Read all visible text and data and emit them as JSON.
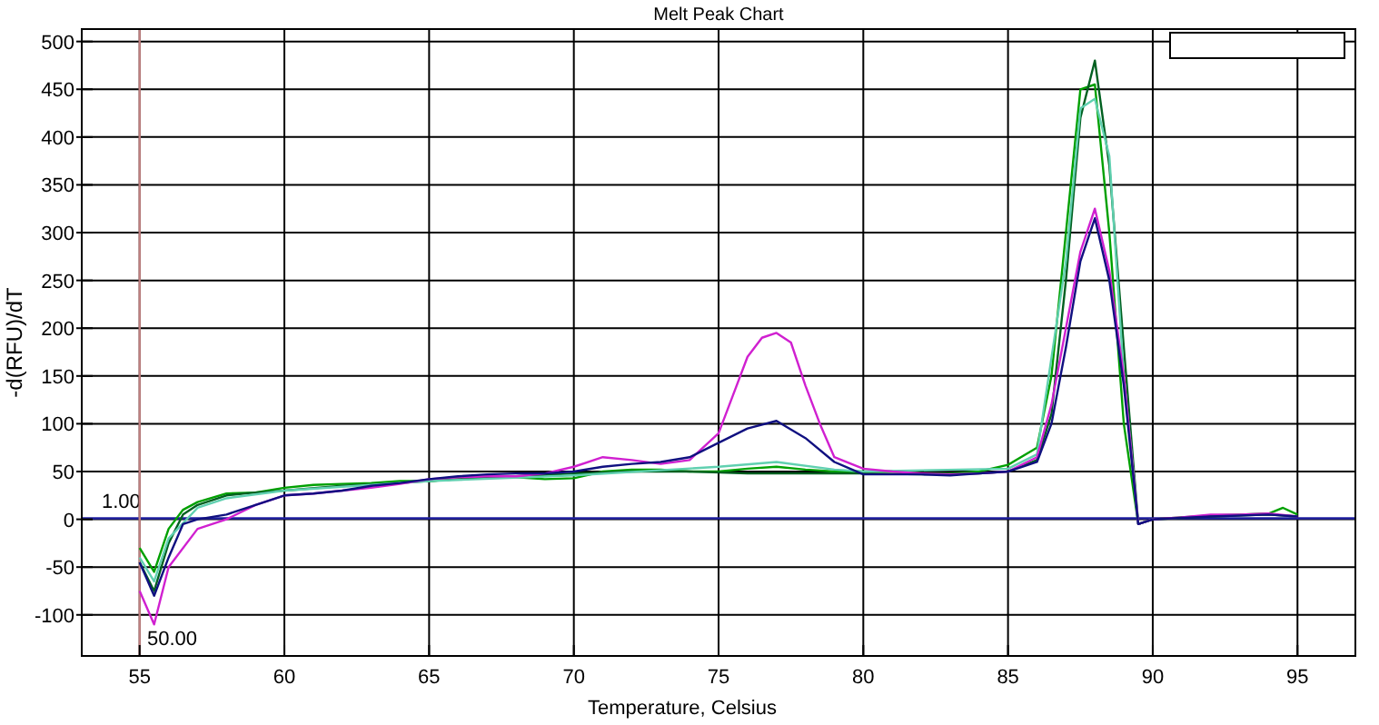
{
  "chart_data": {
    "type": "line",
    "title": "Melt Peak Chart",
    "xlabel": "Temperature, Celsius",
    "ylabel": "-d(RFU)/dT",
    "xlim": [
      53,
      97
    ],
    "xticks": [
      55,
      60,
      65,
      70,
      75,
      80,
      85,
      90,
      95
    ],
    "ylim": [
      -143,
      513
    ],
    "yticks": [
      -100,
      -50,
      0,
      50,
      100,
      150,
      200,
      250,
      300,
      350,
      400,
      450,
      500
    ],
    "grid": true,
    "marker": "none",
    "line_style": "solid",
    "ref_lines": [
      {
        "axis": "y",
        "value": 1,
        "label": "1.00",
        "color": "#2020a0"
      },
      {
        "axis": "x",
        "value": 55,
        "color": "#c08080"
      }
    ],
    "annotations": [
      "50.00"
    ],
    "series": [
      {
        "color": "#00a000",
        "x": [
          55,
          55.5,
          56,
          56.5,
          57,
          58,
          59,
          60,
          61,
          62,
          63,
          64,
          65,
          66,
          67,
          68,
          69,
          70,
          71,
          72,
          73,
          74,
          75,
          76,
          77,
          78,
          79,
          80,
          81,
          82,
          83,
          84,
          85,
          86,
          86.5,
          87,
          87.5,
          88,
          88.5,
          89,
          89.5,
          90,
          91,
          92,
          93,
          94,
          94.5,
          95
        ],
        "values": [
          -30,
          -55,
          -10,
          10,
          18,
          27,
          28,
          33,
          36,
          37,
          38,
          40,
          40,
          42,
          44,
          44,
          42,
          43,
          50,
          52,
          52,
          50,
          50,
          53,
          55,
          52,
          50,
          50,
          50,
          48,
          48,
          50,
          57,
          75,
          150,
          300,
          450,
          455,
          300,
          100,
          -5,
          0,
          2,
          4,
          5,
          6,
          12,
          5
        ]
      },
      {
        "color": "#006020",
        "x": [
          55,
          55.5,
          56,
          56.5,
          57,
          58,
          59,
          60,
          62,
          64,
          66,
          68,
          70,
          72,
          74,
          76,
          77,
          78,
          80,
          82,
          84,
          85,
          86,
          86.5,
          87,
          87.5,
          88,
          88.5,
          89,
          89.5,
          90,
          92,
          94,
          95
        ],
        "values": [
          -45,
          -75,
          -25,
          5,
          15,
          25,
          28,
          30,
          35,
          38,
          42,
          45,
          48,
          50,
          50,
          48,
          48,
          48,
          48,
          47,
          48,
          50,
          62,
          110,
          250,
          420,
          480,
          370,
          180,
          -5,
          0,
          3,
          5,
          3
        ]
      },
      {
        "color": "#60d0b0",
        "x": [
          55,
          55.5,
          56,
          57,
          58,
          60,
          65,
          70,
          75,
          77,
          79,
          80,
          85,
          86,
          87,
          87.5,
          88,
          88.5,
          89,
          89.5,
          90
        ],
        "values": [
          -40,
          -65,
          -20,
          12,
          22,
          30,
          40,
          46,
          55,
          60,
          52,
          50,
          53,
          68,
          270,
          430,
          440,
          380,
          150,
          -5,
          0
        ]
      },
      {
        "color": "#d020d0",
        "x": [
          55,
          55.5,
          56,
          57,
          58,
          59,
          60,
          61,
          62,
          63,
          64,
          65,
          66,
          67,
          68,
          69,
          70,
          71,
          72,
          73,
          74,
          75,
          75.5,
          76,
          76.5,
          77,
          77.5,
          78,
          78.5,
          79,
          80,
          81,
          82,
          83,
          84,
          85,
          86,
          86.5,
          87,
          87.5,
          88,
          88.5,
          89,
          89.5,
          90,
          91,
          92,
          93,
          94,
          95
        ],
        "values": [
          -75,
          -110,
          -50,
          -10,
          0,
          15,
          25,
          27,
          30,
          33,
          37,
          42,
          44,
          45,
          45,
          48,
          55,
          65,
          62,
          58,
          62,
          90,
          130,
          170,
          190,
          195,
          185,
          140,
          100,
          65,
          53,
          50,
          48,
          47,
          48,
          50,
          65,
          120,
          200,
          280,
          325,
          260,
          150,
          -5,
          0,
          2,
          5,
          5,
          6,
          3
        ]
      },
      {
        "color": "#101080",
        "x": [
          55,
          55.5,
          56,
          56.5,
          57,
          58,
          59,
          60,
          61,
          62,
          63,
          64,
          65,
          66,
          67,
          68,
          69,
          70,
          71,
          72,
          73,
          74,
          75,
          76,
          77,
          78,
          79,
          80,
          81,
          82,
          83,
          84,
          85,
          86,
          86.5,
          87,
          87.5,
          88,
          88.5,
          89,
          89.5,
          90,
          92,
          94,
          95
        ],
        "values": [
          -45,
          -80,
          -40,
          -5,
          0,
          5,
          15,
          25,
          27,
          30,
          35,
          38,
          42,
          45,
          47,
          48,
          48,
          50,
          55,
          58,
          60,
          65,
          80,
          95,
          103,
          85,
          60,
          47,
          47,
          47,
          46,
          48,
          50,
          60,
          100,
          180,
          270,
          315,
          250,
          140,
          -5,
          0,
          3,
          5,
          3
        ]
      }
    ]
  }
}
